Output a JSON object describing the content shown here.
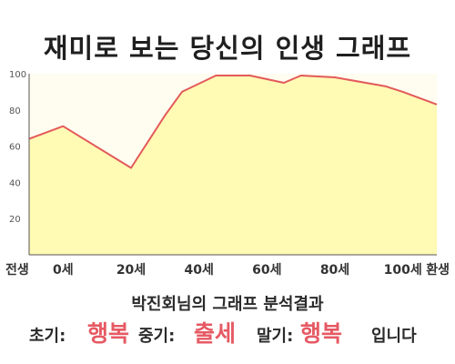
{
  "page": {
    "title": "재미로 보는 당신의 인생 그래프"
  },
  "chart_data": {
    "type": "area",
    "title": "재미로 보는 당신의 인생 그래프",
    "xlabel": "",
    "ylabel": "",
    "ylim": [
      0,
      100
    ],
    "xlim": [
      -10,
      110
    ],
    "yticks": [
      20,
      40,
      60,
      80,
      100
    ],
    "xticks": [
      {
        "x": -10,
        "label": "전생"
      },
      {
        "x": 0,
        "label": "0세"
      },
      {
        "x": 20,
        "label": "20세"
      },
      {
        "x": 40,
        "label": "40세"
      },
      {
        "x": 60,
        "label": "60세"
      },
      {
        "x": 80,
        "label": "80세"
      },
      {
        "x": 100,
        "label": "100세"
      },
      {
        "x": 110,
        "label": "환생"
      }
    ],
    "grid": false,
    "series": [
      {
        "x": [
          -10,
          0,
          20,
          30,
          35,
          45,
          55,
          65,
          70,
          80,
          95,
          100,
          110
        ],
        "y": [
          64,
          71,
          48,
          77,
          90,
          99,
          99,
          95,
          99,
          98,
          93,
          90,
          83
        ]
      }
    ],
    "colors": {
      "line": "#e35a5a",
      "fill": "#fffab4",
      "plot_background": "#fffdf0",
      "axis": "#555555"
    }
  },
  "summary": {
    "caption": "박진회님의 그래프 분석결과",
    "early_label": "초기:",
    "early_value": "행복",
    "mid_label": "중기:",
    "mid_value": "출세",
    "late_label": "말기:",
    "late_value": "행복",
    "ending": "입니다"
  }
}
